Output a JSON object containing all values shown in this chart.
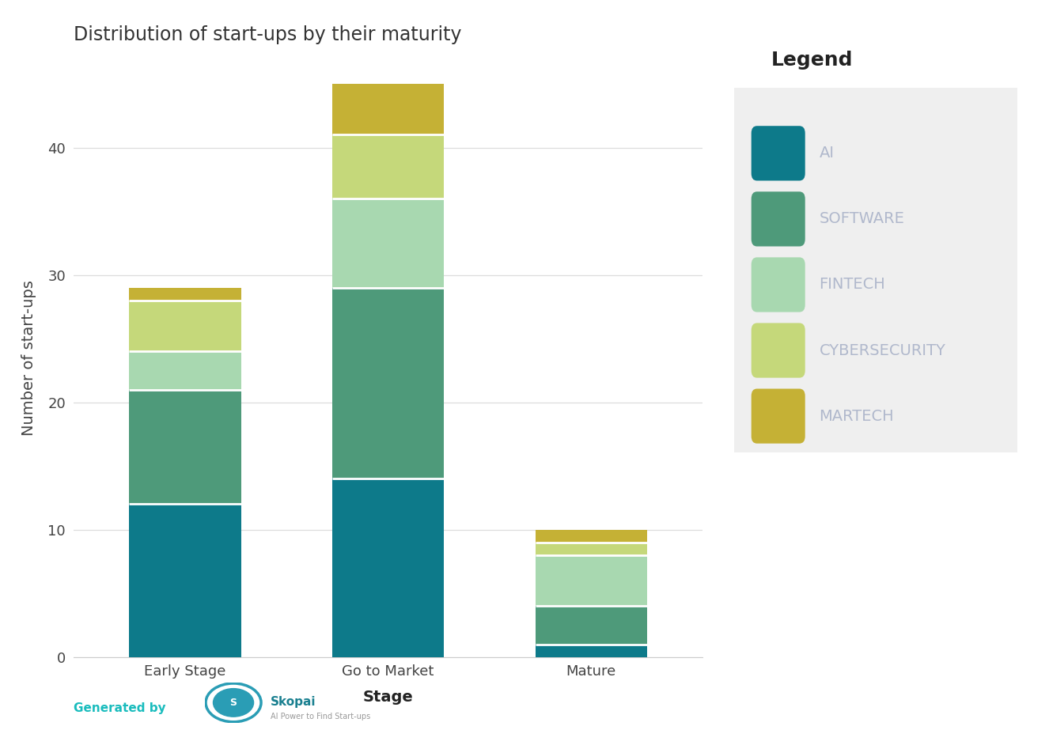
{
  "title": "Distribution of start-ups by their maturity",
  "xlabel": "Stage",
  "ylabel": "Number of start-ups",
  "categories": [
    "Early Stage",
    "Go to Market",
    "Mature"
  ],
  "series_order": [
    "AI",
    "SOFTWARE",
    "FINTECH",
    "CYBERSECURITY",
    "MARTECH"
  ],
  "series": {
    "AI": [
      12,
      14,
      1
    ],
    "SOFTWARE": [
      9,
      15,
      3
    ],
    "FINTECH": [
      3,
      7,
      4
    ],
    "CYBERSECURITY": [
      4,
      5,
      1
    ],
    "MARTECH": [
      1,
      4,
      1
    ]
  },
  "colors": {
    "AI": "#0d7a8a",
    "SOFTWARE": "#4e9a7a",
    "FINTECH": "#a8d8b0",
    "CYBERSECURITY": "#c5d87a",
    "MARTECH": "#c5b135"
  },
  "ylim": [
    0,
    47
  ],
  "yticks": [
    0,
    10,
    20,
    30,
    40
  ],
  "bar_width": 0.55,
  "background_color": "#ffffff",
  "legend_title": "Legend",
  "legend_bg": "#efefef",
  "legend_label_color": "#b0b8cc",
  "title_fontsize": 17,
  "axis_label_fontsize": 14,
  "tick_fontsize": 13,
  "legend_fontsize": 14,
  "legend_title_fontsize": 18,
  "footer_text": "Generated by",
  "footer_color": "#1abcbd"
}
